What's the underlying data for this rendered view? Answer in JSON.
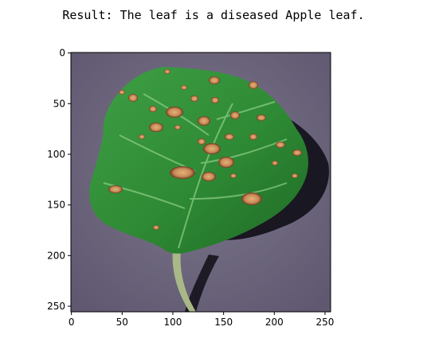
{
  "output": {
    "result_text": "Result: The leaf is a diseased Apple leaf."
  },
  "image_plot": {
    "x_ticks": [
      0,
      50,
      100,
      150,
      200,
      250
    ],
    "y_ticks": [
      0,
      50,
      100,
      150,
      200,
      250
    ],
    "image_extent": [
      256,
      256
    ],
    "colors": {
      "background": "#6f6880",
      "leaf": "#2e8a34",
      "leaf_dark": "#1f6a26",
      "lesion": "#c98a56",
      "lesion_ring": "#6b3a22",
      "shadow": "#15131c",
      "stem": "#a9b887"
    }
  }
}
